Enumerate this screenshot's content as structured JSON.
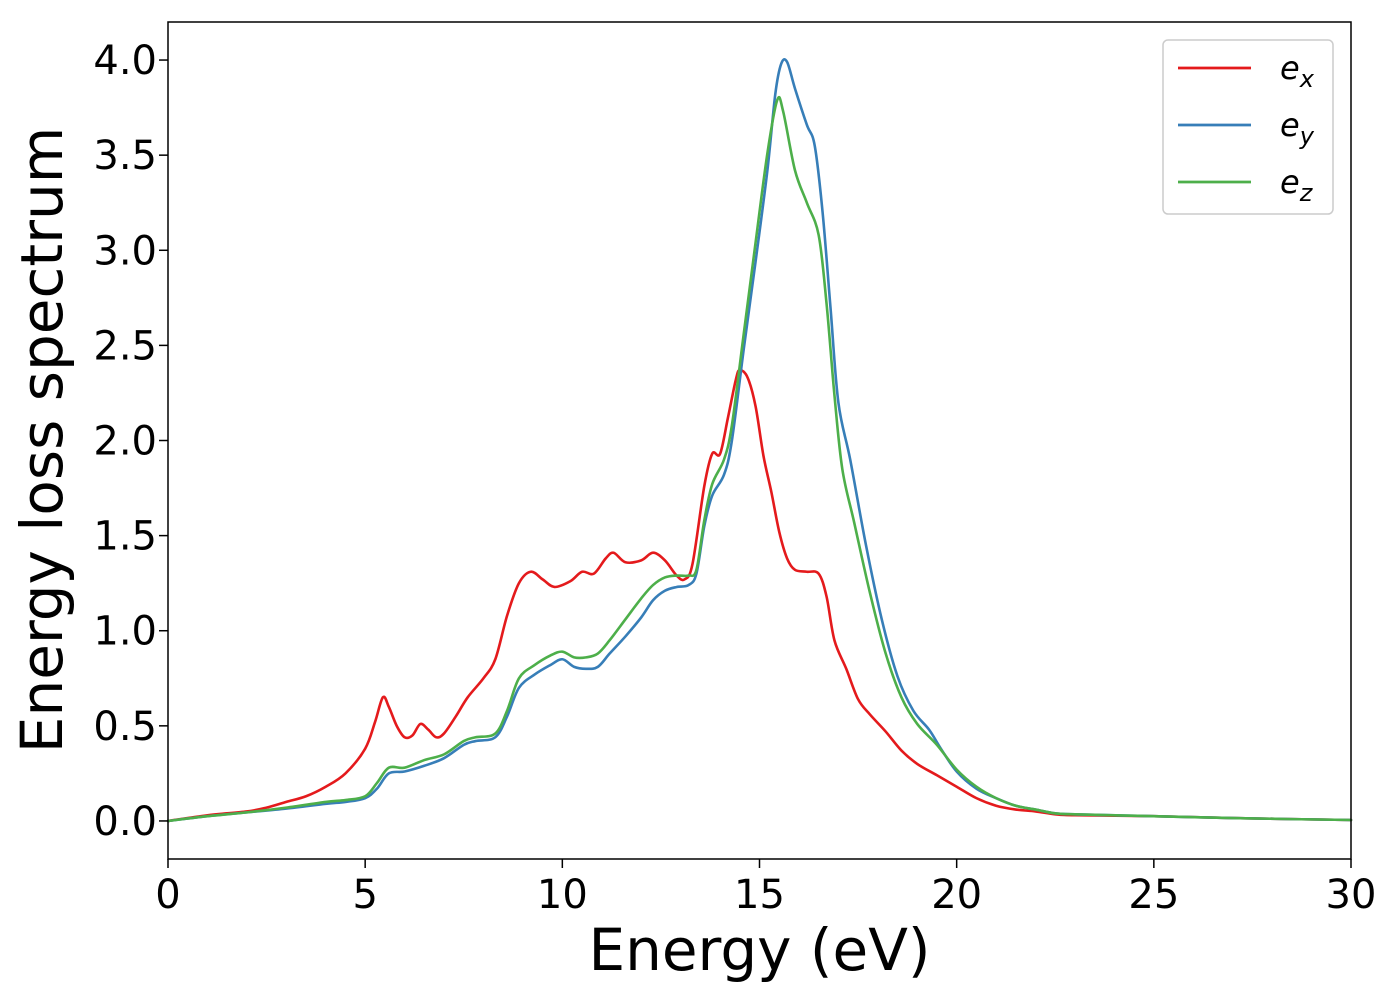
{
  "chart_data": {
    "type": "line",
    "title": "",
    "xlabel": "Energy (eV)",
    "ylabel": "Energy loss spectrum",
    "xlim": [
      0,
      30
    ],
    "ylim": [
      -0.2,
      4.2
    ],
    "xticks": [
      0,
      5,
      10,
      15,
      20,
      25,
      30
    ],
    "yticks": [
      0.0,
      0.5,
      1.0,
      1.5,
      2.0,
      2.5,
      3.0,
      3.5,
      4.0
    ],
    "xtick_labels": [
      "0",
      "5",
      "10",
      "15",
      "20",
      "25",
      "30"
    ],
    "ytick_labels": [
      "0.0",
      "0.5",
      "1.0",
      "1.5",
      "2.0",
      "2.5",
      "3.0",
      "3.5",
      "4.0"
    ],
    "grid": false,
    "legend_position": "top-right",
    "series": [
      {
        "name": "e_x",
        "label_base": "e",
        "label_sub": "x",
        "color": "#e41a1c",
        "points": [
          [
            0,
            0
          ],
          [
            1,
            0.03
          ],
          [
            2,
            0.05
          ],
          [
            2.5,
            0.07
          ],
          [
            3,
            0.1
          ],
          [
            3.5,
            0.13
          ],
          [
            4,
            0.18
          ],
          [
            4.5,
            0.25
          ],
          [
            5,
            0.38
          ],
          [
            5.25,
            0.52
          ],
          [
            5.45,
            0.65
          ],
          [
            5.6,
            0.6
          ],
          [
            5.8,
            0.5
          ],
          [
            6,
            0.44
          ],
          [
            6.2,
            0.45
          ],
          [
            6.4,
            0.51
          ],
          [
            6.6,
            0.48
          ],
          [
            6.8,
            0.44
          ],
          [
            7,
            0.46
          ],
          [
            7.3,
            0.55
          ],
          [
            7.6,
            0.65
          ],
          [
            8,
            0.75
          ],
          [
            8.3,
            0.85
          ],
          [
            8.6,
            1.08
          ],
          [
            8.9,
            1.25
          ],
          [
            9.2,
            1.31
          ],
          [
            9.5,
            1.27
          ],
          [
            9.8,
            1.23
          ],
          [
            10.2,
            1.26
          ],
          [
            10.5,
            1.31
          ],
          [
            10.8,
            1.3
          ],
          [
            11.1,
            1.38
          ],
          [
            11.3,
            1.41
          ],
          [
            11.6,
            1.36
          ],
          [
            12,
            1.37
          ],
          [
            12.3,
            1.41
          ],
          [
            12.6,
            1.37
          ],
          [
            12.9,
            1.29
          ],
          [
            13.1,
            1.27
          ],
          [
            13.3,
            1.35
          ],
          [
            13.6,
            1.76
          ],
          [
            13.8,
            1.93
          ],
          [
            14,
            1.93
          ],
          [
            14.2,
            2.12
          ],
          [
            14.4,
            2.32
          ],
          [
            14.5,
            2.37
          ],
          [
            14.7,
            2.33
          ],
          [
            14.9,
            2.18
          ],
          [
            15.1,
            1.92
          ],
          [
            15.3,
            1.73
          ],
          [
            15.5,
            1.52
          ],
          [
            15.7,
            1.38
          ],
          [
            15.9,
            1.32
          ],
          [
            16.2,
            1.31
          ],
          [
            16.5,
            1.3
          ],
          [
            16.7,
            1.18
          ],
          [
            16.9,
            0.95
          ],
          [
            17.2,
            0.8
          ],
          [
            17.5,
            0.64
          ],
          [
            17.8,
            0.56
          ],
          [
            18.2,
            0.47
          ],
          [
            18.6,
            0.37
          ],
          [
            19,
            0.3
          ],
          [
            19.5,
            0.24
          ],
          [
            20,
            0.18
          ],
          [
            20.5,
            0.12
          ],
          [
            21,
            0.08
          ],
          [
            21.5,
            0.06
          ],
          [
            22,
            0.05
          ],
          [
            22.5,
            0.035
          ],
          [
            23,
            0.03
          ],
          [
            25,
            0.025
          ],
          [
            27,
            0.015
          ],
          [
            30,
            0.005
          ]
        ]
      },
      {
        "name": "e_y",
        "label_base": "e",
        "label_sub": "y",
        "color": "#377eb8",
        "points": [
          [
            0,
            0
          ],
          [
            1,
            0.025
          ],
          [
            2,
            0.045
          ],
          [
            3,
            0.065
          ],
          [
            4,
            0.09
          ],
          [
            4.5,
            0.1
          ],
          [
            5,
            0.12
          ],
          [
            5.3,
            0.17
          ],
          [
            5.6,
            0.25
          ],
          [
            6,
            0.26
          ],
          [
            6.5,
            0.29
          ],
          [
            7,
            0.33
          ],
          [
            7.5,
            0.4
          ],
          [
            7.8,
            0.42
          ],
          [
            8.3,
            0.44
          ],
          [
            8.6,
            0.55
          ],
          [
            8.9,
            0.7
          ],
          [
            9.3,
            0.77
          ],
          [
            9.7,
            0.82
          ],
          [
            10,
            0.85
          ],
          [
            10.3,
            0.81
          ],
          [
            10.6,
            0.8
          ],
          [
            10.9,
            0.81
          ],
          [
            11.2,
            0.88
          ],
          [
            11.6,
            0.97
          ],
          [
            12,
            1.07
          ],
          [
            12.3,
            1.16
          ],
          [
            12.6,
            1.21
          ],
          [
            12.9,
            1.23
          ],
          [
            13.2,
            1.24
          ],
          [
            13.4,
            1.3
          ],
          [
            13.6,
            1.55
          ],
          [
            13.8,
            1.71
          ],
          [
            14.1,
            1.82
          ],
          [
            14.3,
            2.0
          ],
          [
            14.6,
            2.48
          ],
          [
            14.9,
            2.94
          ],
          [
            15.2,
            3.42
          ],
          [
            15.4,
            3.82
          ],
          [
            15.55,
            3.98
          ],
          [
            15.7,
            3.99
          ],
          [
            15.9,
            3.85
          ],
          [
            16.2,
            3.66
          ],
          [
            16.4,
            3.55
          ],
          [
            16.6,
            3.2
          ],
          [
            16.8,
            2.7
          ],
          [
            17,
            2.2
          ],
          [
            17.3,
            1.9
          ],
          [
            17.7,
            1.45
          ],
          [
            18.1,
            1.06
          ],
          [
            18.5,
            0.76
          ],
          [
            18.9,
            0.58
          ],
          [
            19.3,
            0.48
          ],
          [
            19.6,
            0.38
          ],
          [
            20,
            0.26
          ],
          [
            20.5,
            0.17
          ],
          [
            21,
            0.12
          ],
          [
            21.5,
            0.08
          ],
          [
            22,
            0.06
          ],
          [
            22.5,
            0.04
          ],
          [
            23,
            0.035
          ],
          [
            25,
            0.025
          ],
          [
            27,
            0.015
          ],
          [
            30,
            0.005
          ]
        ]
      },
      {
        "name": "e_z",
        "label_base": "e",
        "label_sub": "z",
        "color": "#4daf4a",
        "points": [
          [
            0,
            0
          ],
          [
            1,
            0.025
          ],
          [
            2,
            0.045
          ],
          [
            3,
            0.07
          ],
          [
            4,
            0.1
          ],
          [
            4.5,
            0.11
          ],
          [
            5,
            0.13
          ],
          [
            5.3,
            0.2
          ],
          [
            5.6,
            0.28
          ],
          [
            6,
            0.28
          ],
          [
            6.5,
            0.32
          ],
          [
            7,
            0.35
          ],
          [
            7.5,
            0.42
          ],
          [
            7.8,
            0.44
          ],
          [
            8.3,
            0.46
          ],
          [
            8.6,
            0.58
          ],
          [
            8.9,
            0.75
          ],
          [
            9.3,
            0.82
          ],
          [
            9.7,
            0.87
          ],
          [
            10,
            0.89
          ],
          [
            10.3,
            0.86
          ],
          [
            10.6,
            0.86
          ],
          [
            10.9,
            0.88
          ],
          [
            11.2,
            0.95
          ],
          [
            11.6,
            1.06
          ],
          [
            12,
            1.17
          ],
          [
            12.3,
            1.24
          ],
          [
            12.6,
            1.28
          ],
          [
            12.9,
            1.29
          ],
          [
            13.2,
            1.29
          ],
          [
            13.4,
            1.32
          ],
          [
            13.6,
            1.58
          ],
          [
            13.8,
            1.77
          ],
          [
            14.1,
            1.9
          ],
          [
            14.3,
            2.08
          ],
          [
            14.6,
            2.56
          ],
          [
            14.9,
            3.04
          ],
          [
            15.2,
            3.51
          ],
          [
            15.45,
            3.79
          ],
          [
            15.6,
            3.73
          ],
          [
            15.9,
            3.42
          ],
          [
            16.2,
            3.25
          ],
          [
            16.5,
            3.08
          ],
          [
            16.7,
            2.72
          ],
          [
            16.9,
            2.24
          ],
          [
            17.1,
            1.85
          ],
          [
            17.4,
            1.57
          ],
          [
            17.8,
            1.2
          ],
          [
            18.2,
            0.88
          ],
          [
            18.6,
            0.65
          ],
          [
            19,
            0.51
          ],
          [
            19.5,
            0.4
          ],
          [
            20,
            0.27
          ],
          [
            20.5,
            0.18
          ],
          [
            21,
            0.12
          ],
          [
            21.5,
            0.08
          ],
          [
            22,
            0.06
          ],
          [
            22.5,
            0.04
          ],
          [
            23,
            0.035
          ],
          [
            25,
            0.025
          ],
          [
            27,
            0.015
          ],
          [
            30,
            0.005
          ]
        ]
      }
    ]
  }
}
